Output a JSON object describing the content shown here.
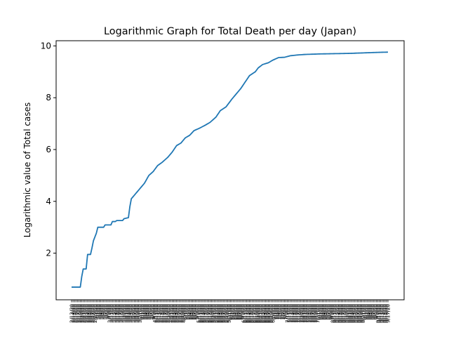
{
  "chart_data": {
    "type": "line",
    "title": "Logarithmic Graph for Total Death per day (Japan)",
    "ylabel": "Logarithmic value of Total cases",
    "xlabel": "",
    "ylim": [
      0.2,
      10.2
    ],
    "yticks": [
      2,
      4,
      6,
      8,
      10
    ],
    "grid": false,
    "color": "#1f77b4",
    "first_x_label": "2/13/20",
    "last_x_label": "9/17/20",
    "num_points": 218,
    "keypoints": [
      [
        0,
        0.69
      ],
      [
        6,
        0.69
      ],
      [
        7,
        1.1
      ],
      [
        8,
        1.39
      ],
      [
        10,
        1.39
      ],
      [
        11,
        1.95
      ],
      [
        13,
        1.95
      ],
      [
        14,
        2.2
      ],
      [
        15,
        2.48
      ],
      [
        17,
        2.77
      ],
      [
        18,
        3.0
      ],
      [
        22,
        3.0
      ],
      [
        23,
        3.09
      ],
      [
        27,
        3.09
      ],
      [
        28,
        3.22
      ],
      [
        30,
        3.22
      ],
      [
        31,
        3.26
      ],
      [
        35,
        3.26
      ],
      [
        36,
        3.33
      ],
      [
        39,
        3.37
      ],
      [
        40,
        3.8
      ],
      [
        41,
        4.1
      ],
      [
        44,
        4.3
      ],
      [
        47,
        4.5
      ],
      [
        50,
        4.7
      ],
      [
        53,
        5.0
      ],
      [
        56,
        5.15
      ],
      [
        59,
        5.38
      ],
      [
        62,
        5.5
      ],
      [
        66,
        5.7
      ],
      [
        69,
        5.9
      ],
      [
        72,
        6.15
      ],
      [
        75,
        6.25
      ],
      [
        78,
        6.45
      ],
      [
        81,
        6.55
      ],
      [
        84,
        6.73
      ],
      [
        88,
        6.83
      ],
      [
        92,
        6.95
      ],
      [
        95,
        7.05
      ],
      [
        99,
        7.25
      ],
      [
        102,
        7.5
      ],
      [
        106,
        7.65
      ],
      [
        110,
        7.95
      ],
      [
        113,
        8.15
      ],
      [
        116,
        8.35
      ],
      [
        119,
        8.6
      ],
      [
        122,
        8.85
      ],
      [
        126,
        9.0
      ],
      [
        128,
        9.15
      ],
      [
        131,
        9.28
      ],
      [
        135,
        9.35
      ],
      [
        138,
        9.45
      ],
      [
        142,
        9.55
      ],
      [
        146,
        9.56
      ],
      [
        150,
        9.62
      ],
      [
        155,
        9.65
      ],
      [
        160,
        9.67
      ],
      [
        170,
        9.69
      ],
      [
        180,
        9.7
      ],
      [
        190,
        9.71
      ],
      [
        200,
        9.73
      ],
      [
        210,
        9.75
      ],
      [
        217,
        9.76
      ]
    ]
  }
}
